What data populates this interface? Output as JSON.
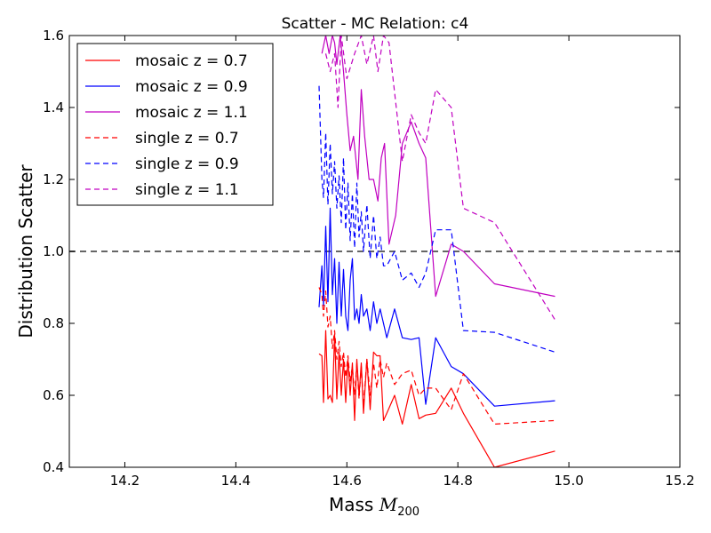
{
  "chart_data": {
    "type": "line",
    "title": "Scatter - MC Relation: c4",
    "xlabel_text": "Mass ",
    "xlabel_math": "M",
    "xlabel_sub": "200",
    "ylabel": "Distribution Scatter",
    "xlim": [
      14.1,
      15.2
    ],
    "ylim": [
      0.4,
      1.6
    ],
    "xticks": [
      "14.2",
      "14.4",
      "14.6",
      "14.8",
      "15.0",
      "15.2"
    ],
    "yticks": [
      "0.4",
      "0.6",
      "0.8",
      "1.0",
      "1.2",
      "1.4",
      "1.6"
    ],
    "reference_line": {
      "y": 1.0,
      "color": "#666666",
      "style": "dashed"
    },
    "grid": false,
    "legend_position": "top-left",
    "series": [
      {
        "name": "mosaic z = 0.7",
        "color": "#ff0000",
        "style": "solid",
        "x": [
          14.55,
          14.555,
          14.558,
          14.562,
          14.566,
          14.57,
          14.574,
          14.578,
          14.582,
          14.586,
          14.59,
          14.594,
          14.598,
          14.602,
          14.606,
          14.61,
          14.614,
          14.618,
          14.622,
          14.626,
          14.63,
          14.636,
          14.642,
          14.648,
          14.654,
          14.66,
          14.666,
          14.672,
          14.686,
          14.7,
          14.716,
          14.73,
          14.742,
          14.76,
          14.788,
          14.81,
          14.866,
          14.975
        ],
        "y": [
          0.715,
          0.71,
          0.58,
          0.78,
          0.59,
          0.6,
          0.58,
          0.77,
          0.59,
          0.72,
          0.6,
          0.7,
          0.58,
          0.7,
          0.6,
          0.69,
          0.53,
          0.7,
          0.6,
          0.69,
          0.55,
          0.7,
          0.56,
          0.72,
          0.71,
          0.71,
          0.53,
          0.55,
          0.6,
          0.52,
          0.63,
          0.535,
          0.545,
          0.55,
          0.62,
          0.55,
          0.4,
          0.445
        ]
      },
      {
        "name": "mosaic z = 0.9",
        "color": "#0000ff",
        "style": "solid",
        "x": [
          14.55,
          14.555,
          14.558,
          14.562,
          14.566,
          14.57,
          14.574,
          14.578,
          14.582,
          14.586,
          14.59,
          14.594,
          14.598,
          14.602,
          14.606,
          14.61,
          14.614,
          14.618,
          14.622,
          14.626,
          14.63,
          14.636,
          14.642,
          14.648,
          14.654,
          14.66,
          14.666,
          14.672,
          14.686,
          14.7,
          14.716,
          14.73,
          14.742,
          14.76,
          14.788,
          14.81,
          14.866,
          14.975
        ],
        "y": [
          0.845,
          0.96,
          0.85,
          1.07,
          0.86,
          1.12,
          0.88,
          0.98,
          0.8,
          0.97,
          0.82,
          0.95,
          0.82,
          0.78,
          0.92,
          0.98,
          0.81,
          0.84,
          0.8,
          0.88,
          0.82,
          0.84,
          0.78,
          0.86,
          0.8,
          0.84,
          0.8,
          0.76,
          0.84,
          0.76,
          0.755,
          0.76,
          0.575,
          0.76,
          0.68,
          0.66,
          0.57,
          0.585
        ]
      },
      {
        "name": "mosaic z = 1.1",
        "color": "#c000c0",
        "style": "solid",
        "x": [
          14.555,
          14.562,
          14.568,
          14.574,
          14.578,
          14.582,
          14.588,
          14.594,
          14.6,
          14.606,
          14.612,
          14.62,
          14.626,
          14.632,
          14.64,
          14.648,
          14.656,
          14.662,
          14.668,
          14.676,
          14.688,
          14.7,
          14.716,
          14.73,
          14.742,
          14.76,
          14.788,
          14.81,
          14.866,
          14.975
        ],
        "y": [
          1.55,
          1.6,
          1.55,
          1.6,
          1.58,
          1.52,
          1.6,
          1.5,
          1.38,
          1.28,
          1.32,
          1.2,
          1.45,
          1.32,
          1.2,
          1.2,
          1.14,
          1.26,
          1.3,
          1.02,
          1.1,
          1.3,
          1.36,
          1.3,
          1.26,
          0.875,
          1.02,
          1.0,
          0.91,
          0.875
        ]
      },
      {
        "name": "single z = 0.7",
        "color": "#ff0000",
        "style": "dashed",
        "x": [
          14.55,
          14.555,
          14.558,
          14.562,
          14.566,
          14.57,
          14.574,
          14.578,
          14.582,
          14.586,
          14.59,
          14.594,
          14.598,
          14.602,
          14.606,
          14.61,
          14.614,
          14.618,
          14.622,
          14.626,
          14.63,
          14.636,
          14.642,
          14.648,
          14.654,
          14.66,
          14.666,
          14.672,
          14.686,
          14.7,
          14.716,
          14.73,
          14.742,
          14.76,
          14.788,
          14.81,
          14.866,
          14.975
        ],
        "y": [
          0.9,
          0.88,
          0.82,
          0.89,
          0.79,
          0.82,
          0.73,
          0.78,
          0.7,
          0.75,
          0.68,
          0.72,
          0.65,
          0.71,
          0.64,
          0.68,
          0.6,
          0.69,
          0.59,
          0.68,
          0.57,
          0.7,
          0.6,
          0.69,
          0.62,
          0.7,
          0.65,
          0.69,
          0.63,
          0.66,
          0.67,
          0.6,
          0.62,
          0.62,
          0.56,
          0.66,
          0.52,
          0.53
        ]
      },
      {
        "name": "single z = 0.9",
        "color": "#0000ff",
        "style": "dashed",
        "x": [
          14.55,
          14.555,
          14.558,
          14.562,
          14.566,
          14.57,
          14.574,
          14.578,
          14.582,
          14.586,
          14.59,
          14.594,
          14.598,
          14.602,
          14.606,
          14.61,
          14.614,
          14.618,
          14.622,
          14.626,
          14.63,
          14.636,
          14.642,
          14.648,
          14.654,
          14.66,
          14.666,
          14.672,
          14.686,
          14.7,
          14.716,
          14.73,
          14.742,
          14.76,
          14.788,
          14.81,
          14.866,
          14.975
        ],
        "y": [
          1.46,
          1.2,
          1.15,
          1.33,
          1.13,
          1.3,
          1.16,
          1.25,
          1.12,
          1.21,
          1.08,
          1.26,
          1.06,
          1.19,
          1.03,
          1.16,
          1.01,
          1.19,
          1.04,
          1.11,
          1.0,
          1.13,
          0.98,
          1.1,
          0.98,
          1.04,
          0.96,
          0.96,
          1.0,
          0.92,
          0.94,
          0.9,
          0.94,
          1.06,
          1.06,
          0.78,
          0.775,
          0.72
        ]
      },
      {
        "name": "single z = 1.1",
        "color": "#c000c0",
        "style": "dashed",
        "x": [
          14.562,
          14.57,
          14.578,
          14.584,
          14.59,
          14.6,
          14.614,
          14.626,
          14.636,
          14.648,
          14.656,
          14.666,
          14.676,
          14.7,
          14.716,
          14.73,
          14.742,
          14.76,
          14.788,
          14.81,
          14.866,
          14.975
        ],
        "y": [
          1.55,
          1.5,
          1.55,
          1.4,
          1.6,
          1.48,
          1.55,
          1.6,
          1.52,
          1.6,
          1.5,
          1.6,
          1.58,
          1.25,
          1.38,
          1.33,
          1.3,
          1.45,
          1.4,
          1.12,
          1.08,
          0.81
        ]
      }
    ]
  }
}
